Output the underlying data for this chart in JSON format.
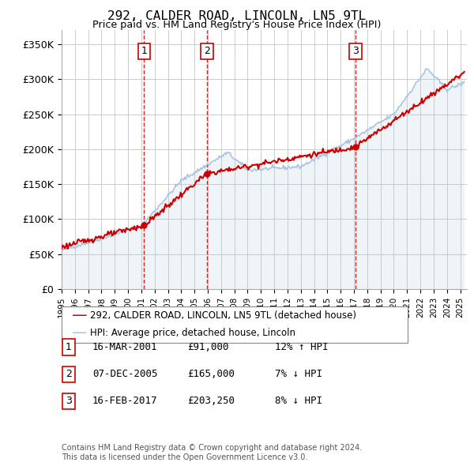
{
  "title": "292, CALDER ROAD, LINCOLN, LN5 9TL",
  "subtitle": "Price paid vs. HM Land Registry's House Price Index (HPI)",
  "ylim": [
    0,
    370000
  ],
  "xlim_start": 1995.0,
  "xlim_end": 2025.5,
  "purchases": [
    {
      "num": 1,
      "date_num": 2001.21,
      "price": 91000,
      "label": "16-MAR-2001",
      "amount": "£91,000",
      "hpi_pct": "12% ↑ HPI"
    },
    {
      "num": 2,
      "date_num": 2005.93,
      "price": 165000,
      "label": "07-DEC-2005",
      "amount": "£165,000",
      "hpi_pct": "7% ↓ HPI"
    },
    {
      "num": 3,
      "date_num": 2017.12,
      "price": 203250,
      "label": "16-FEB-2017",
      "amount": "£203,250",
      "hpi_pct": "8% ↓ HPI"
    }
  ],
  "legend_property_label": "292, CALDER ROAD, LINCOLN, LN5 9TL (detached house)",
  "legend_hpi_label": "HPI: Average price, detached house, Lincoln",
  "footer": "Contains HM Land Registry data © Crown copyright and database right 2024.\nThis data is licensed under the Open Government Licence v3.0.",
  "hpi_color": "#aac4e0",
  "property_color": "#cc0000",
  "purchase_line_color": "#cc0000",
  "bg_color": "#ffffff",
  "grid_color": "#cccccc"
}
